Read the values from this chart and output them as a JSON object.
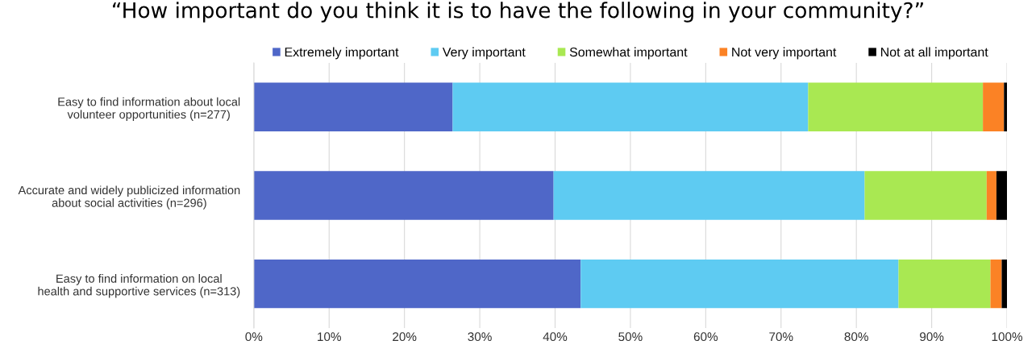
{
  "chart_data": {
    "type": "bar",
    "orientation": "horizontal",
    "stacked": true,
    "title": "“How important do you think it is to have the following in your community?”",
    "categories": [
      "Easy to find information about local\nvolunteer opportunities (n=277)",
      "Accurate and widely publicized information\nabout social activities (n=296)",
      "Easy to find information on local\nhealth and supportive services (n=313)"
    ],
    "series": [
      {
        "name": "Extremely important",
        "color": "#4f67c8",
        "values": [
          26.4,
          39.8,
          43.4
        ]
      },
      {
        "name": "Very important",
        "color": "#5ecbf2",
        "values": [
          47.2,
          41.3,
          42.2
        ]
      },
      {
        "name": "Somewhat important",
        "color": "#a9e852",
        "values": [
          23.2,
          16.2,
          12.2
        ]
      },
      {
        "name": "Not very important",
        "color": "#fb8225",
        "values": [
          2.8,
          1.3,
          1.5
        ]
      },
      {
        "name": "Not at all important",
        "color": "#000000",
        "values": [
          0.4,
          1.4,
          0.7
        ]
      }
    ],
    "xlim": [
      0,
      100
    ],
    "xticks": [
      {
        "value": 0,
        "label": "0%"
      },
      {
        "value": 10,
        "label": "10%"
      },
      {
        "value": 20,
        "label": "20%"
      },
      {
        "value": 30,
        "label": "30%"
      },
      {
        "value": 40,
        "label": "40%"
      },
      {
        "value": 50,
        "label": "50%"
      },
      {
        "value": 60,
        "label": "60%"
      },
      {
        "value": 70,
        "label": "70%"
      },
      {
        "value": 80,
        "label": "80%"
      },
      {
        "value": 90,
        "label": "90%"
      },
      {
        "value": 100,
        "label": "100%"
      }
    ],
    "grid": "x",
    "legend": "top"
  }
}
